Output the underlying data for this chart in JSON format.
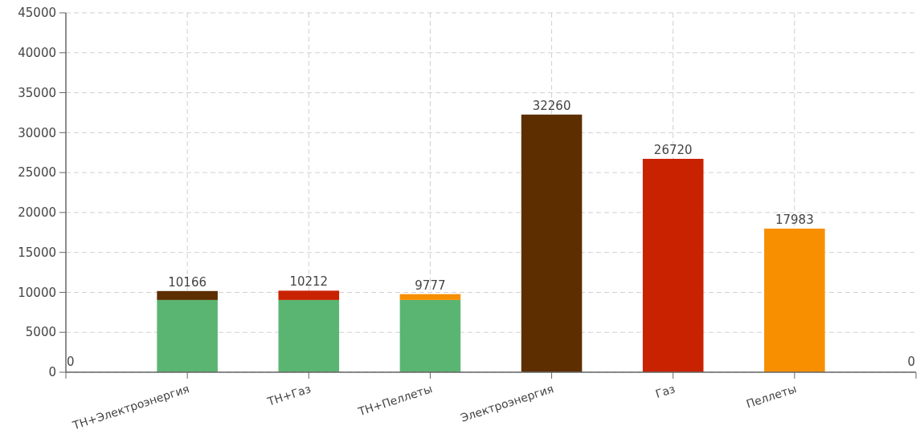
{
  "chart_data": {
    "type": "bar",
    "stacked": true,
    "categories": [
      "ТН+Электроэнергия",
      "ТН+Газ",
      "ТН+Пеллеты",
      "Электроэнергия",
      "Газ",
      "Пеллеты"
    ],
    "series": [
      {
        "color": "#5bb572",
        "values": [
          9050,
          9050,
          9050,
          null,
          null,
          null
        ]
      },
      {
        "color": "#5c2e00",
        "values": [
          1116,
          null,
          null,
          32260,
          null,
          null
        ]
      },
      {
        "color": "#c92200",
        "values": [
          null,
          1162,
          null,
          null,
          26720,
          null
        ]
      },
      {
        "color": "#f78f00",
        "values": [
          null,
          null,
          727,
          null,
          null,
          17983
        ]
      }
    ],
    "totals": [
      "10166",
      "10212",
      "9777",
      "32260",
      "26720",
      "17983"
    ],
    "ylim": [
      0,
      45000
    ],
    "yticks": [
      0,
      5000,
      10000,
      15000,
      20000,
      25000,
      30000,
      35000,
      40000,
      45000
    ],
    "grid": true,
    "annotations": [
      "0",
      "0"
    ]
  }
}
